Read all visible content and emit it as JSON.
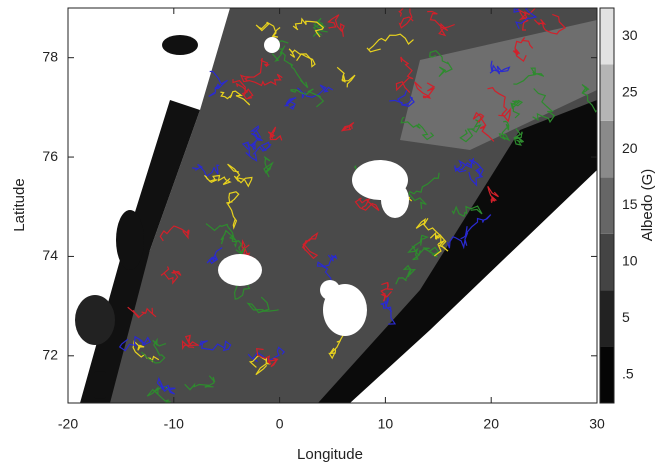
{
  "chart_data": {
    "type": "map",
    "xlabel": "Longitude",
    "ylabel": "Latitude",
    "xlim": [
      -20,
      30
    ],
    "xticks": [
      -20,
      -10,
      0,
      10,
      20,
      30
    ],
    "ylim": [
      71.05,
      79
    ],
    "yticks": [
      72,
      74,
      76,
      78
    ],
    "colorbar": {
      "label": "Albedo (G)",
      "levels": [
        {
          "value": 0.5,
          "label": ".5"
        },
        5,
        10,
        15,
        20,
        25,
        30
      ],
      "colors": [
        "#050505",
        "#222222",
        "#444444",
        "#666666",
        "#8a8a8a",
        "#b5b5b5",
        "#e2e2e2"
      ]
    }
  }
}
